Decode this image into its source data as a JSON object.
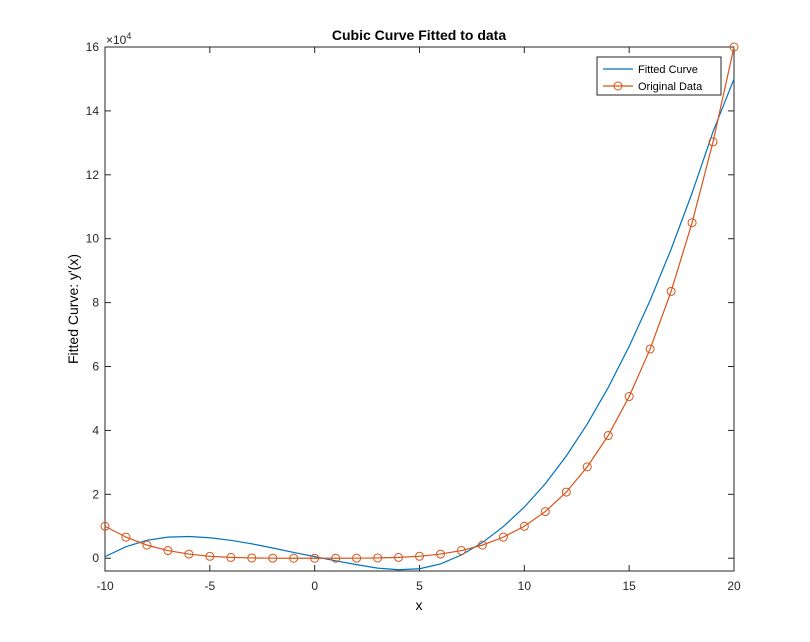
{
  "chart_data": {
    "type": "line",
    "title": "Cubic Curve Fitted to data",
    "xlabel": "x",
    "ylabel": "Fitted Curve:  y'(x)",
    "xlim": [
      -10,
      20
    ],
    "ylim": [
      -4000,
      160000
    ],
    "y_exponent": {
      "base": "×10",
      "power": "4"
    },
    "x_ticks": [
      -10,
      -5,
      0,
      5,
      10,
      15,
      20
    ],
    "x_tick_labels": [
      "-10",
      "-5",
      "0",
      "5",
      "10",
      "15",
      "20"
    ],
    "y_ticks": [
      0,
      20000,
      40000,
      60000,
      80000,
      100000,
      120000,
      140000,
      160000
    ],
    "y_tick_labels": [
      "0",
      "2",
      "4",
      "6",
      "8",
      "10",
      "12",
      "14",
      "16"
    ],
    "grid": false,
    "legend_position": "top-right",
    "series": [
      {
        "name": "Fitted Curve",
        "style": "line",
        "color": "#0072BD",
        "x": [
          -10,
          -9,
          -8,
          -7,
          -6,
          -5,
          -4,
          -3,
          -2,
          -1,
          0,
          1,
          2,
          3,
          4,
          5,
          6,
          7,
          8,
          9,
          10,
          11,
          12,
          13,
          14,
          15,
          16,
          17,
          18,
          19,
          20
        ],
        "y": [
          500,
          3600,
          5600,
          6600,
          6800,
          6400,
          5600,
          4500,
          3200,
          1800,
          500,
          -800,
          -2000,
          -3100,
          -3600,
          -3300,
          -1800,
          1000,
          4900,
          9900,
          16000,
          23300,
          32000,
          42000,
          53400,
          66300,
          80700,
          96700,
          114300,
          133500,
          150000
        ]
      },
      {
        "name": "Original Data",
        "style": "line-circle",
        "color": "#D95319",
        "x": [
          -10,
          -9,
          -8,
          -7,
          -6,
          -5,
          -4,
          -3,
          -2,
          -1,
          0,
          1,
          2,
          3,
          4,
          5,
          6,
          7,
          8,
          9,
          10,
          11,
          12,
          13,
          14,
          15,
          16,
          17,
          18,
          19,
          20
        ],
        "y": [
          10000,
          6600,
          4100,
          2400,
          1300,
          600,
          260,
          80,
          16,
          1,
          0,
          1,
          16,
          80,
          260,
          600,
          1300,
          2400,
          4100,
          6600,
          10000,
          14600,
          20700,
          28600,
          38400,
          50600,
          65500,
          83500,
          105000,
          130300,
          160000
        ]
      }
    ]
  }
}
